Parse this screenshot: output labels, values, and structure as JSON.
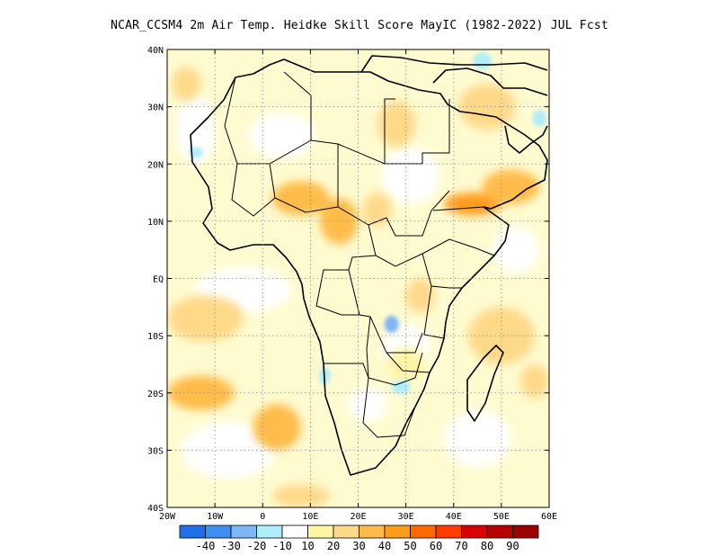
{
  "title": "NCAR_CCSM4 2m Air Temp. Heidke Skill Score MayIC (1982-2022) JUL Fcst",
  "map": {
    "lon_range": [
      -20,
      60
    ],
    "lat_range": [
      -40,
      40
    ],
    "lat_ticks": [
      {
        "lat": 40,
        "label": "40N"
      },
      {
        "lat": 30,
        "label": "30N"
      },
      {
        "lat": 20,
        "label": "20N"
      },
      {
        "lat": 10,
        "label": "10N"
      },
      {
        "lat": 0,
        "label": "EQ"
      },
      {
        "lat": -10,
        "label": "10S"
      },
      {
        "lat": -20,
        "label": "20S"
      },
      {
        "lat": -30,
        "label": "30S"
      },
      {
        "lat": -40,
        "label": "40S"
      }
    ],
    "lon_ticks": [
      {
        "lon": -20,
        "label": "20W"
      },
      {
        "lon": -10,
        "label": "10W"
      },
      {
        "lon": 0,
        "label": "0"
      },
      {
        "lon": 10,
        "label": "10E"
      },
      {
        "lon": 20,
        "label": "20E"
      },
      {
        "lon": 30,
        "label": "30E"
      },
      {
        "lon": 40,
        "label": "40E"
      },
      {
        "lon": 50,
        "label": "50E"
      },
      {
        "lon": 60,
        "label": "60E"
      }
    ],
    "grid": true,
    "background_color": "#fffbd0"
  },
  "colorbar": {
    "labels": [
      "-40",
      "-30",
      "-20",
      "-10",
      "10",
      "20",
      "30",
      "40",
      "50",
      "60",
      "70",
      "80",
      "90"
    ],
    "colors": [
      "#1f6fe6",
      "#3f8ef0",
      "#7fb6f5",
      "#b0eef8",
      "#ffffff",
      "#fff5a6",
      "#ffd98a",
      "#ffbc4a",
      "#ff9c1c",
      "#ff6a00",
      "#ff3b00",
      "#d90000",
      "#b80000",
      "#9a0000"
    ]
  },
  "skill_patches": [
    {
      "lon": 8,
      "lat": 14,
      "rx": 6,
      "ry": 3,
      "level": 40,
      "color": "#ffbc4a"
    },
    {
      "lon": 16,
      "lat": 10,
      "rx": 4,
      "ry": 4,
      "level": 40,
      "color": "#ffbc4a"
    },
    {
      "lon": 24,
      "lat": 12,
      "rx": 3,
      "ry": 3,
      "level": 30,
      "color": "#ffd98a"
    },
    {
      "lon": 44,
      "lat": 13,
      "rx": 6,
      "ry": 2,
      "level": 50,
      "color": "#ff9c1c"
    },
    {
      "lon": 52,
      "lat": 16,
      "rx": 6,
      "ry": 3,
      "level": 40,
      "color": "#ffbc4a"
    },
    {
      "lon": 47,
      "lat": 30,
      "rx": 6,
      "ry": 4,
      "level": 30,
      "color": "#ffd98a"
    },
    {
      "lon": 28,
      "lat": 27,
      "rx": 4,
      "ry": 4,
      "level": 30,
      "color": "#ffd98a"
    },
    {
      "lon": -13,
      "lat": -20,
      "rx": 7,
      "ry": 3,
      "level": 40,
      "color": "#ffbc4a"
    },
    {
      "lon": -12,
      "lat": -7,
      "rx": 8,
      "ry": 4,
      "level": 30,
      "color": "#ffd98a"
    },
    {
      "lon": 3,
      "lat": -26,
      "rx": 5,
      "ry": 4,
      "level": 40,
      "color": "#ffbc4a"
    },
    {
      "lon": 50,
      "lat": -10,
      "rx": 7,
      "ry": 5,
      "level": 30,
      "color": "#ffd98a"
    },
    {
      "lon": 57,
      "lat": -18,
      "rx": 3,
      "ry": 3,
      "level": 30,
      "color": "#ffd98a"
    },
    {
      "lon": 33,
      "lat": -3,
      "rx": 3,
      "ry": 3,
      "level": 30,
      "color": "#ffd98a"
    },
    {
      "lon": 30,
      "lat": -15,
      "rx": 4,
      "ry": 3,
      "level": 20,
      "color": "#fff5a6"
    },
    {
      "lon": 8,
      "lat": -38,
      "rx": 6,
      "ry": 2,
      "level": 30,
      "color": "#ffd98a"
    },
    {
      "lon": -16,
      "lat": 34,
      "rx": 3,
      "ry": 3,
      "level": 30,
      "color": "#ffd98a"
    }
  ],
  "white_patches": [
    {
      "lon": 4,
      "lat": 25,
      "rx": 7,
      "ry": 4
    },
    {
      "lon": 31,
      "lat": 18,
      "rx": 6,
      "ry": 5
    },
    {
      "lon": 30,
      "lat": -12,
      "rx": 5,
      "ry": 4
    },
    {
      "lon": -4,
      "lat": -2,
      "rx": 10,
      "ry": 4
    },
    {
      "lon": -7,
      "lat": -30,
      "rx": 10,
      "ry": 5
    },
    {
      "lon": 22,
      "lat": -22,
      "rx": 4,
      "ry": 3
    },
    {
      "lon": 45,
      "lat": -28,
      "rx": 7,
      "ry": 5
    },
    {
      "lon": 53,
      "lat": 5,
      "rx": 5,
      "ry": 4
    },
    {
      "lon": -14,
      "lat": 26,
      "rx": 4,
      "ry": 6
    }
  ],
  "negative_patches": [
    {
      "lon": 27,
      "lat": -8,
      "rx": 1.5,
      "ry": 1.5,
      "level": -20,
      "color": "#7fb6f5"
    },
    {
      "lon": 46,
      "lat": 38,
      "rx": 2,
      "ry": 1.5,
      "level": -10,
      "color": "#b0eef8"
    },
    {
      "lon": 58,
      "lat": 28,
      "rx": 1.5,
      "ry": 1.5,
      "level": -10,
      "color": "#b0eef8"
    },
    {
      "lon": 29,
      "lat": -19,
      "rx": 2,
      "ry": 1.2,
      "level": -10,
      "color": "#b0eef8"
    },
    {
      "lon": 13,
      "lat": -17,
      "rx": 1.2,
      "ry": 1.5,
      "level": -10,
      "color": "#b0eef8"
    },
    {
      "lon": -14,
      "lat": 22,
      "rx": 1.5,
      "ry": 1,
      "level": -10,
      "color": "#b0eef8"
    }
  ]
}
